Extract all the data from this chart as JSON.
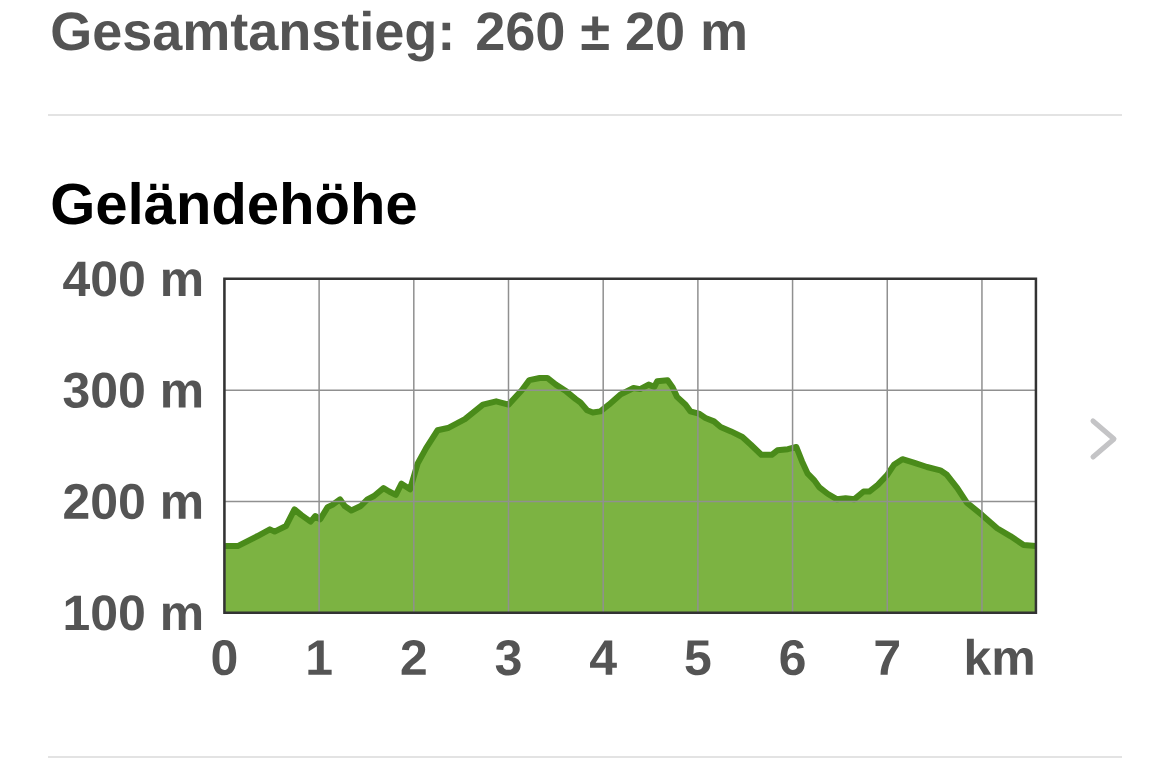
{
  "chart_data": {
    "type": "area",
    "title": "Geländehöhe",
    "xlabel": "km",
    "annotations": [
      "Gesamtanstieg: 260 ± 20 m"
    ],
    "x": [
      0,
      0.14,
      0.21,
      0.35,
      0.48,
      0.53,
      0.65,
      0.74,
      0.81,
      0.91,
      0.96,
      1.01,
      1.09,
      1.14,
      1.22,
      1.27,
      1.34,
      1.44,
      1.51,
      1.58,
      1.68,
      1.74,
      1.81,
      1.87,
      1.96,
      2.04,
      2.13,
      2.25,
      2.36,
      2.54,
      2.73,
      2.87,
      3.0,
      3.14,
      3.22,
      3.33,
      3.41,
      3.5,
      3.61,
      3.71,
      3.76,
      3.83,
      3.89,
      3.97,
      4.06,
      4.18,
      4.32,
      4.39,
      4.48,
      4.54,
      4.57,
      4.68,
      4.73,
      4.78,
      4.87,
      4.92,
      5.01,
      5.08,
      5.17,
      5.24,
      5.35,
      5.47,
      5.56,
      5.67,
      5.78,
      5.84,
      5.95,
      6.04,
      6.1,
      6.16,
      6.23,
      6.28,
      6.37,
      6.47,
      6.56,
      6.65,
      6.75,
      6.81,
      6.9,
      7.0,
      7.07,
      7.16,
      7.28,
      7.42,
      7.56,
      7.63,
      7.74,
      7.84,
      8.0,
      8.16,
      8.3,
      8.44,
      8.57
    ],
    "values": [
      160,
      160,
      163,
      169,
      175,
      173,
      178,
      193,
      188,
      182,
      187,
      184,
      195,
      197,
      202,
      196,
      192,
      196,
      202,
      205,
      212,
      209,
      206,
      216,
      211,
      234,
      248,
      264,
      266,
      274,
      287,
      290,
      287,
      300,
      309,
      311,
      311,
      305,
      299,
      292,
      289,
      282,
      280,
      281,
      287,
      296,
      302,
      301,
      305,
      303,
      308,
      309,
      303,
      294,
      287,
      281,
      279,
      275,
      272,
      267,
      263,
      258,
      251,
      242,
      242,
      246,
      247,
      249,
      236,
      225,
      219,
      213,
      207,
      202,
      203,
      202,
      209,
      209,
      215,
      224,
      233,
      238,
      235,
      231,
      228,
      224,
      212,
      199,
      188,
      176,
      169,
      161,
      160
    ],
    "color": "#7cb342",
    "xlim": [
      0,
      8.57
    ],
    "ylim": [
      100,
      400
    ],
    "xticks": [
      0,
      1,
      2,
      3,
      4,
      5,
      6,
      7,
      {
        "value": 8,
        "label": null
      }
    ],
    "yticks": [
      {
        "value": 100,
        "label": "100 m"
      },
      {
        "value": 200,
        "label": "200 m"
      },
      {
        "value": 300,
        "label": "300 m"
      },
      {
        "value": 400,
        "label": "400 m"
      }
    ],
    "grid": true
  }
}
